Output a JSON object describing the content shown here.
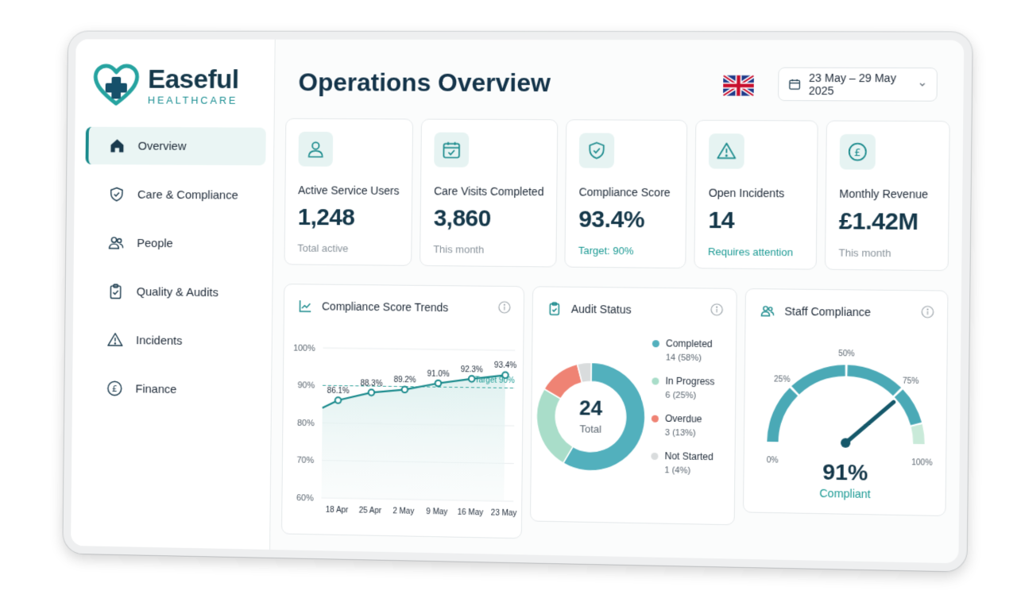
{
  "brand": {
    "name": "Easeful",
    "subtitle": "HEALTHCARE"
  },
  "sidebar": {
    "items": [
      {
        "label": "Overview",
        "icon": "home-icon",
        "active": true
      },
      {
        "label": "Care & Compliance",
        "icon": "shield-check-icon"
      },
      {
        "label": "People",
        "icon": "people-icon"
      },
      {
        "label": "Quality & Audits",
        "icon": "clipboard-check-icon"
      },
      {
        "label": "Incidents",
        "icon": "warning-icon"
      },
      {
        "label": "Finance",
        "icon": "pound-icon"
      }
    ]
  },
  "header": {
    "title": "Operations Overview",
    "date_range": "23 May – 29 May 2025"
  },
  "kpis": [
    {
      "label": "Active Service Users",
      "value": "1,248",
      "sub": "Total active",
      "icon": "user-icon"
    },
    {
      "label": "Care Visits Completed",
      "value": "3,860",
      "sub": "This month",
      "icon": "calendar-check-icon"
    },
    {
      "label": "Compliance Score",
      "value": "93.4%",
      "sub": "Target: 90%",
      "icon": "shield-check-icon"
    },
    {
      "label": "Open Incidents",
      "value": "14",
      "sub": "Requires attention",
      "icon": "warning-icon"
    },
    {
      "label": "Monthly Revenue",
      "value": "£1.42M",
      "sub": "This month",
      "icon": "pound-icon"
    }
  ],
  "colors": {
    "teal": "#1a8a8c",
    "overdue": "#ef8374",
    "inprogress": "#a9ddc9",
    "completed": "#52b0bd",
    "notstarted": "#d9dcdd"
  },
  "trend": {
    "title": "Compliance Score Trends",
    "target_label": "Target 90%",
    "chart_data": {
      "type": "line",
      "categories": [
        "18 Apr",
        "25 Apr",
        "2 May",
        "9 May",
        "16 May",
        "23 May"
      ],
      "values": [
        86.1,
        88.3,
        89.2,
        91.0,
        92.3,
        93.4
      ],
      "ylim": [
        60,
        100
      ],
      "yticks": [
        "100%",
        "90%",
        "80%",
        "70%",
        "60%"
      ],
      "target": 90
    }
  },
  "audit": {
    "title": "Audit Status",
    "total": "24",
    "total_label": "Total",
    "chart_data": {
      "type": "pie",
      "slices": [
        {
          "name": "Completed",
          "value": 14,
          "text": "14 (58%)"
        },
        {
          "name": "In Progress",
          "value": 6,
          "text": "6 (25%)"
        },
        {
          "name": "Overdue",
          "value": 3,
          "text": "3 (13%)"
        },
        {
          "name": "Not Started",
          "value": 1,
          "text": "1 (4%)"
        }
      ]
    }
  },
  "staff": {
    "title": "Staff Compliance",
    "value_text": "91%",
    "status": "Compliant",
    "gauge_value": 91,
    "ticks": [
      "0%",
      "25%",
      "50%",
      "75%",
      "100%"
    ]
  }
}
